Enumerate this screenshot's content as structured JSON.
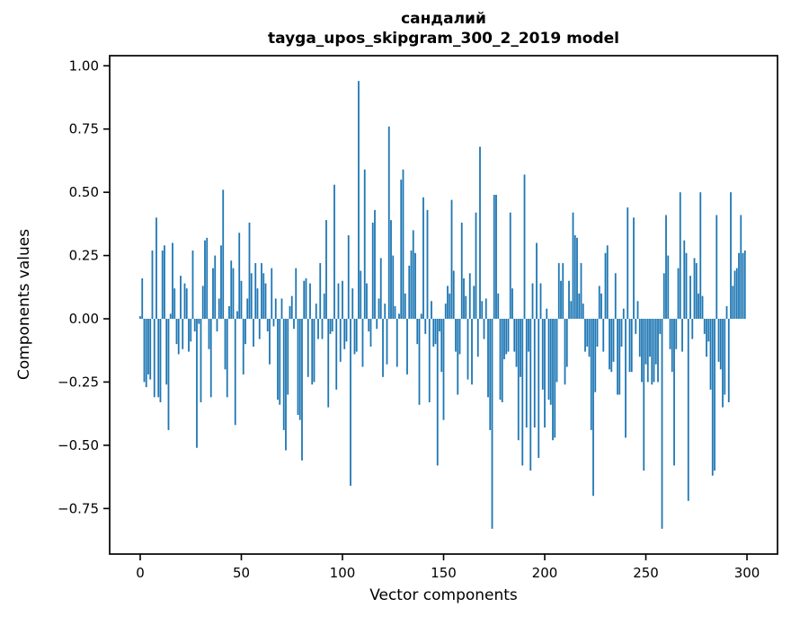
{
  "figure": {
    "background": "#ffffff"
  },
  "chart_data": {
    "type": "bar",
    "title": "сандалий",
    "subtitle": "tayga_upos_skipgram_300_2_2019 model",
    "xlabel": "Vector components",
    "ylabel": "Components values",
    "x_tick_values": [
      0,
      50,
      100,
      150,
      200,
      250,
      300
    ],
    "x_tick_labels": [
      "0",
      "50",
      "100",
      "150",
      "200",
      "250",
      "300"
    ],
    "y_tick_values": [
      1.0,
      0.75,
      0.5,
      0.25,
      0.0,
      -0.25,
      -0.5,
      -0.75
    ],
    "y_tick_labels": [
      "1.00",
      "0.75",
      "0.50",
      "0.25",
      "0.00",
      "−0.25",
      "−0.50",
      "−0.75"
    ],
    "xlim": [
      -15.1,
      315.1
    ],
    "ylim": [
      -0.93,
      1.04
    ],
    "grid": false,
    "bar_color": "#1f77b4",
    "axis_color": "#000000",
    "n_components": 300,
    "values": [
      0.01,
      0.16,
      -0.25,
      -0.27,
      -0.22,
      -0.24,
      0.27,
      -0.31,
      0.4,
      -0.31,
      -0.33,
      0.27,
      0.29,
      -0.26,
      -0.44,
      0.02,
      0.3,
      0.12,
      -0.1,
      -0.14,
      0.17,
      -0.12,
      0.14,
      0.12,
      -0.13,
      -0.09,
      0.27,
      -0.05,
      -0.51,
      -0.02,
      -0.33,
      0.13,
      0.31,
      0.32,
      -0.12,
      -0.31,
      0.2,
      0.25,
      -0.05,
      0.08,
      0.29,
      0.51,
      -0.2,
      -0.31,
      0.05,
      0.23,
      0.2,
      -0.42,
      0.03,
      0.34,
      0.15,
      -0.22,
      -0.1,
      0.08,
      0.38,
      0.18,
      -0.11,
      0.22,
      0.12,
      -0.08,
      0.22,
      0.18,
      0.14,
      -0.05,
      -0.18,
      0.2,
      -0.03,
      0.08,
      -0.32,
      -0.34,
      0.08,
      -0.44,
      -0.52,
      -0.3,
      0.05,
      0.09,
      -0.04,
      0.2,
      -0.38,
      -0.4,
      -0.56,
      0.15,
      0.16,
      -0.23,
      0.14,
      -0.26,
      -0.25,
      0.06,
      -0.08,
      0.22,
      -0.08,
      0.1,
      0.39,
      -0.35,
      -0.06,
      -0.05,
      0.53,
      -0.28,
      0.14,
      -0.17,
      0.15,
      -0.12,
      -0.09,
      0.33,
      -0.66,
      0.12,
      -0.14,
      -0.13,
      0.94,
      0.19,
      -0.19,
      0.59,
      0.14,
      -0.05,
      -0.11,
      0.38,
      0.43,
      -0.04,
      0.08,
      0.24,
      -0.23,
      0.06,
      -0.18,
      0.76,
      0.39,
      0.25,
      0.05,
      -0.19,
      0.02,
      0.55,
      0.59,
      0.1,
      -0.22,
      0.21,
      0.27,
      0.35,
      0.26,
      -0.1,
      -0.34,
      0.02,
      0.48,
      -0.06,
      0.43,
      -0.33,
      0.07,
      -0.11,
      -0.1,
      -0.58,
      -0.05,
      -0.21,
      -0.4,
      0.06,
      0.13,
      0.1,
      0.47,
      0.19,
      -0.13,
      -0.3,
      -0.14,
      0.38,
      0.16,
      0.09,
      -0.24,
      0.18,
      -0.26,
      0.13,
      0.42,
      -0.15,
      0.68,
      0.07,
      -0.08,
      0.08,
      -0.31,
      -0.44,
      -0.83,
      0.49,
      0.49,
      0.1,
      -0.32,
      -0.33,
      -0.16,
      -0.14,
      -0.13,
      0.42,
      0.12,
      -0.13,
      -0.19,
      -0.48,
      -0.23,
      -0.58,
      0.57,
      -0.43,
      -0.13,
      -0.6,
      0.14,
      -0.43,
      0.3,
      -0.55,
      0.14,
      -0.28,
      -0.43,
      0.04,
      -0.32,
      -0.34,
      -0.48,
      -0.47,
      -0.25,
      0.22,
      0.15,
      0.22,
      -0.26,
      -0.19,
      0.15,
      0.07,
      0.42,
      0.33,
      0.32,
      0.1,
      0.22,
      0.06,
      -0.13,
      -0.11,
      -0.15,
      -0.44,
      -0.7,
      -0.29,
      -0.11,
      0.13,
      0.1,
      -0.13,
      0.26,
      0.29,
      -0.2,
      -0.21,
      -0.17,
      0.18,
      -0.3,
      -0.3,
      -0.11,
      0.04,
      -0.47,
      0.44,
      -0.21,
      -0.21,
      0.4,
      -0.06,
      0.07,
      -0.15,
      -0.25,
      -0.6,
      -0.18,
      -0.25,
      -0.15,
      -0.26,
      -0.25,
      -0.18,
      -0.25,
      -0.06,
      -0.83,
      0.18,
      0.41,
      0.25,
      -0.12,
      -0.21,
      -0.58,
      -0.12,
      0.2,
      0.5,
      -0.13,
      0.31,
      0.26,
      -0.72,
      0.17,
      -0.08,
      0.24,
      0.22,
      0.1,
      0.5,
      0.09,
      -0.06,
      -0.15,
      -0.09,
      -0.28,
      -0.62,
      -0.6,
      0.41,
      -0.17,
      -0.2,
      -0.35,
      -0.3,
      0.05,
      -0.33,
      0.5,
      0.13,
      0.19,
      0.2,
      0.26,
      0.41,
      0.26,
      0.27
    ]
  }
}
